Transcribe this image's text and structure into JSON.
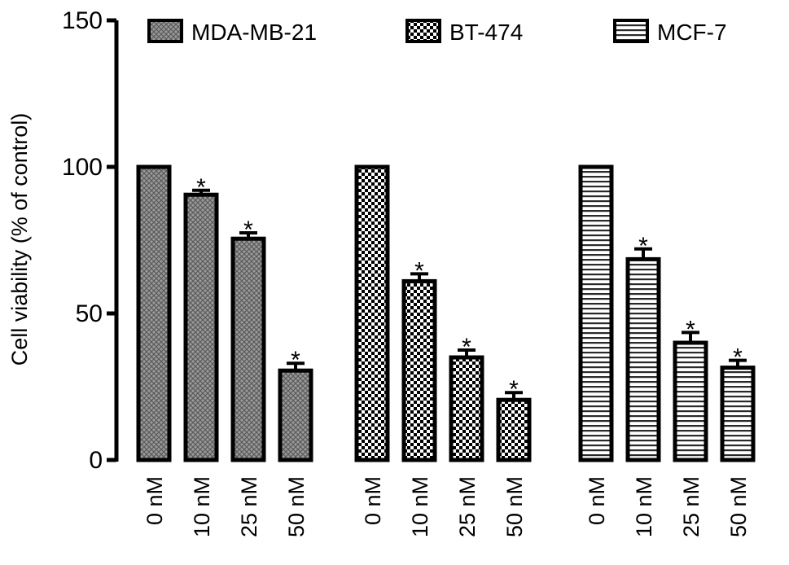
{
  "chart_data": {
    "type": "bar",
    "ylabel": "Cell viability (% of control)",
    "ylim": [
      0,
      150
    ],
    "yticks": [
      0,
      50,
      100,
      150
    ],
    "grid": false,
    "legend_position": "top",
    "categories": [
      "0 nM",
      "10 nM",
      "25 nM",
      "50 nM"
    ],
    "series": [
      {
        "name": "MDA-MB-21",
        "pattern": "crosshatch",
        "values": [
          100,
          90.5,
          75.5,
          30.5
        ],
        "errors": [
          0,
          1.5,
          2,
          2.5
        ],
        "significance": [
          "",
          "*",
          "*",
          "*"
        ]
      },
      {
        "name": "BT-474",
        "pattern": "checkerboard",
        "values": [
          100,
          61,
          35,
          20.5
        ],
        "errors": [
          0,
          2.5,
          2.5,
          2.5
        ],
        "significance": [
          "",
          "*",
          "*",
          "*"
        ]
      },
      {
        "name": "MCF-7",
        "pattern": "horizontal-lines",
        "values": [
          100,
          68.5,
          40,
          31.5
        ],
        "errors": [
          0,
          3.5,
          3.5,
          2.5
        ],
        "significance": [
          "",
          "*",
          "*",
          "*"
        ]
      }
    ]
  }
}
